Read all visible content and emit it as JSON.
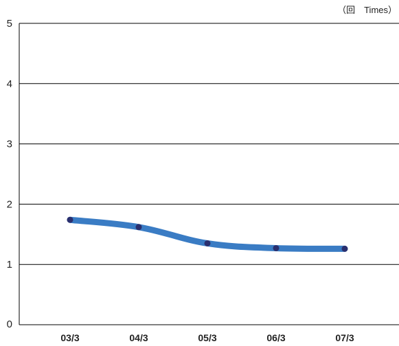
{
  "unit_label": "（回　Times）",
  "colors": {
    "line": "#3a7cc4",
    "marker": "#2a2f6e",
    "grid": "#000000"
  },
  "chart_data": {
    "type": "line",
    "title": "",
    "xlabel": "",
    "ylabel": "",
    "unit": "（回　Times）",
    "categories": [
      "03/3",
      "04/3",
      "05/3",
      "06/3",
      "07/3"
    ],
    "series": [
      {
        "values": [
          1.74,
          1.62,
          1.35,
          1.27,
          1.26
        ]
      }
    ],
    "ylim": [
      0,
      5
    ],
    "yticks": [
      0,
      1,
      2,
      3,
      4,
      5
    ],
    "grid": true,
    "legend": "none"
  }
}
